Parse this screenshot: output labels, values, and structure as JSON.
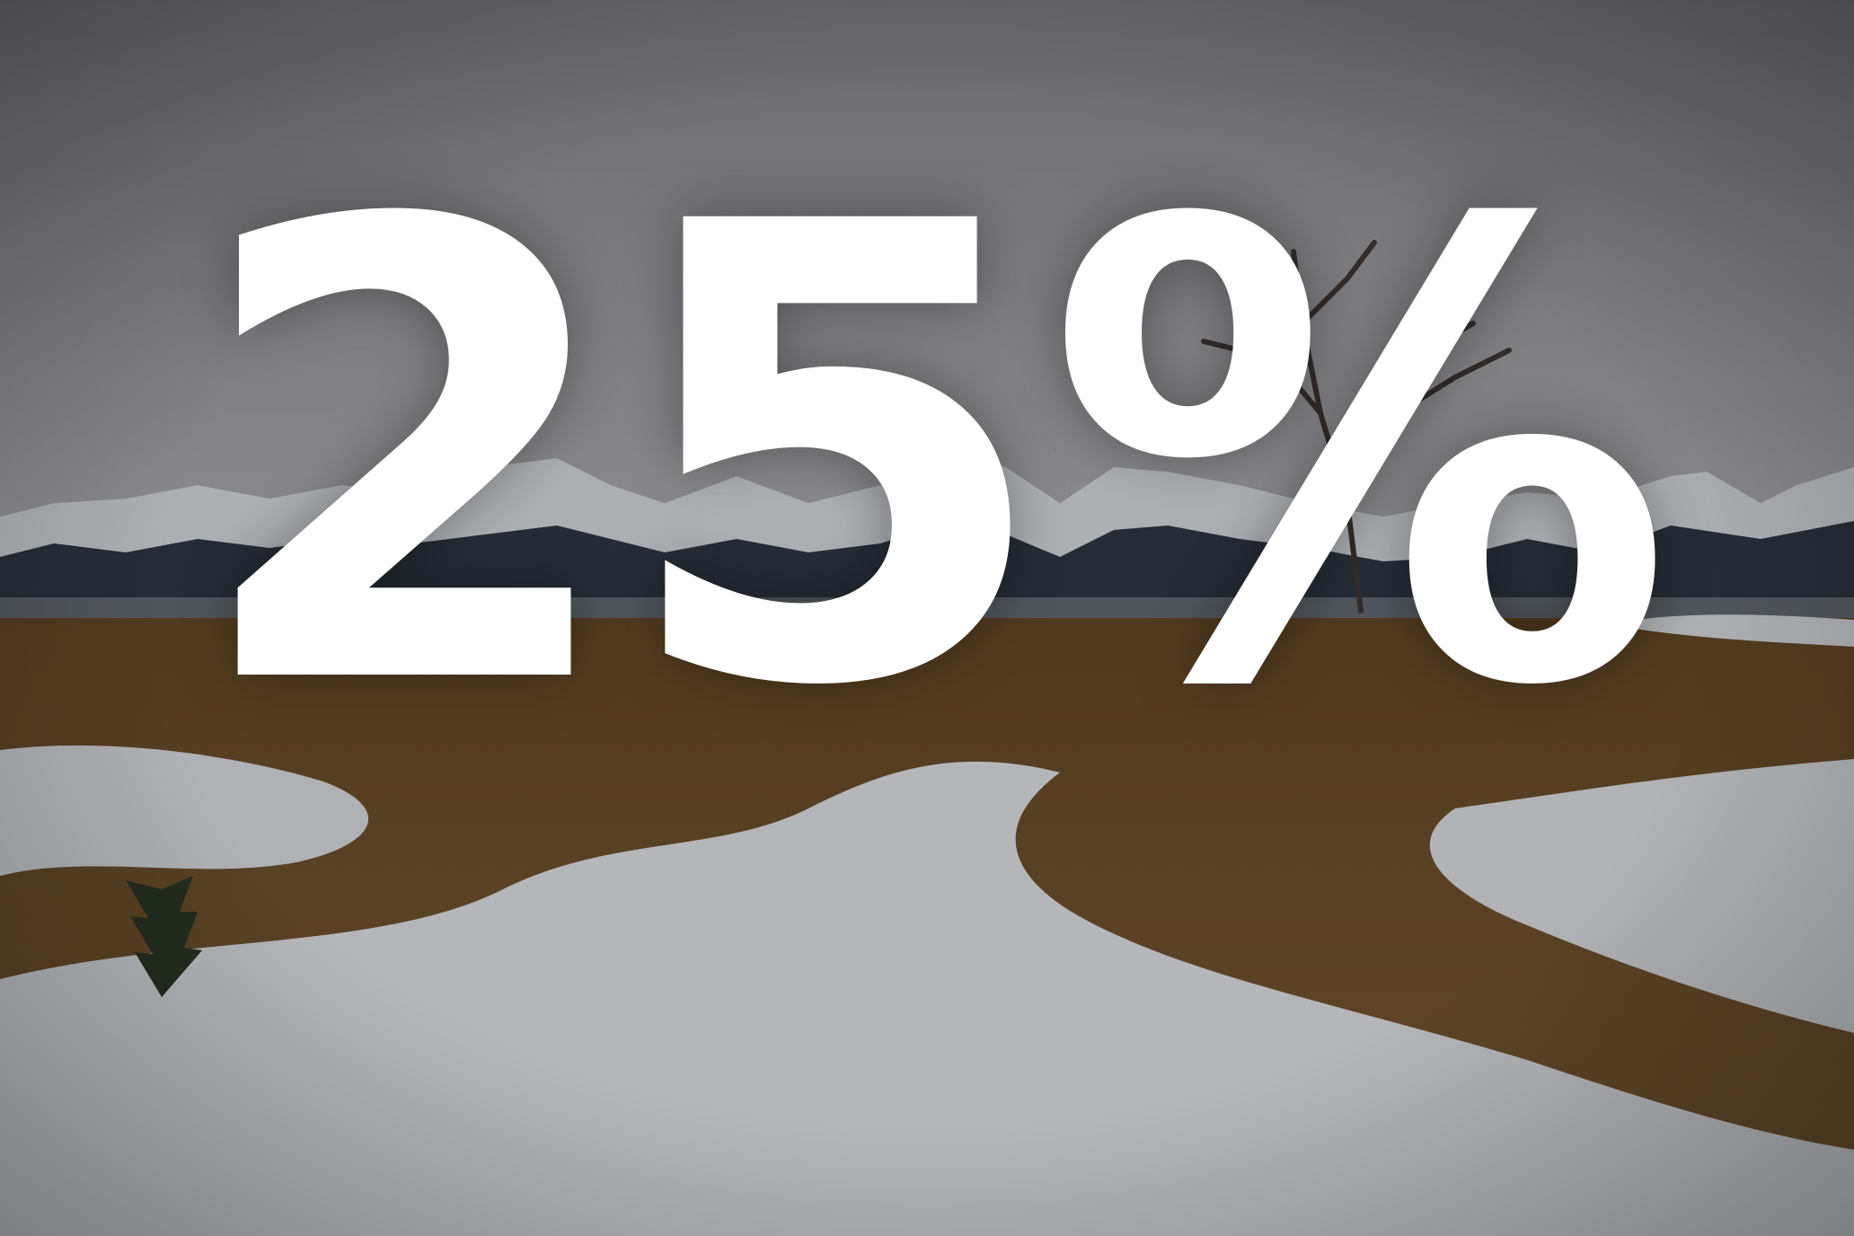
{
  "headline": {
    "text": "25%",
    "color": "#ffffff"
  },
  "background": {
    "sky_color": "#8e8e92",
    "mountain_color": "#2f3640",
    "snowcap_color": "#d9dbdf",
    "water_color": "#5f646b",
    "grass_color": "#6e5029",
    "snow_color": "#cfd0d4"
  }
}
